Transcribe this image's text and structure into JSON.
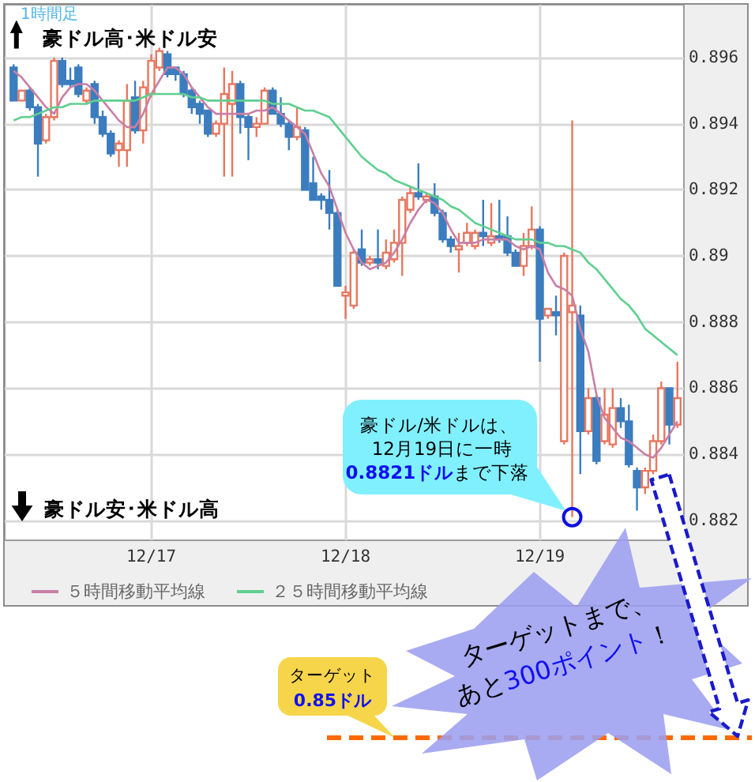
{
  "chart_data": {
    "type": "candlestick",
    "categories": [
      null,
      null,
      null,
      null,
      null,
      null,
      null,
      null,
      null,
      null,
      null,
      null,
      null,
      null,
      null,
      null,
      null,
      "12/17",
      null,
      null,
      null,
      null,
      null,
      null,
      null,
      null,
      null,
      null,
      null,
      null,
      null,
      null,
      null,
      null,
      null,
      null,
      null,
      null,
      null,
      null,
      null,
      "12/18",
      null,
      null,
      null,
      null,
      null,
      null,
      null,
      null,
      null,
      null,
      null,
      null,
      null,
      null,
      null,
      null,
      null,
      null,
      null,
      null,
      null,
      null,
      null,
      "12/19",
      null,
      null,
      null,
      null,
      null,
      null,
      null,
      null,
      null,
      null,
      null,
      null,
      null,
      null,
      null,
      null,
      null
    ],
    "ohlc": [
      [
        0.8957,
        0.8958,
        0.8947,
        0.8947
      ],
      [
        0.8947,
        0.895,
        0.8947,
        0.895
      ],
      [
        0.895,
        0.8951,
        0.8944,
        0.8945
      ],
      [
        0.8945,
        0.8946,
        0.8924,
        0.8934
      ],
      [
        0.8935,
        0.8943,
        0.8934,
        0.8942
      ],
      [
        0.8942,
        0.896,
        0.8941,
        0.8959
      ],
      [
        0.8959,
        0.896,
        0.8951,
        0.8952
      ],
      [
        0.8953,
        0.8957,
        0.8951,
        0.8952
      ],
      [
        0.8957,
        0.8958,
        0.8948,
        0.8949
      ],
      [
        0.8947,
        0.8951,
        0.8946,
        0.895
      ],
      [
        0.8952,
        0.8953,
        0.894,
        0.8942
      ],
      [
        0.8942,
        0.8944,
        0.8936,
        0.8937
      ],
      [
        0.8937,
        0.8938,
        0.893,
        0.8931
      ],
      [
        0.8932,
        0.8935,
        0.8927,
        0.8934
      ],
      [
        0.8932,
        0.8952,
        0.8927,
        0.8947
      ],
      [
        0.8948,
        0.8953,
        0.8937,
        0.8938
      ],
      [
        0.8938,
        0.8953,
        0.8934,
        0.8951
      ],
      [
        0.8949,
        0.8961,
        0.8948,
        0.8959
      ],
      [
        0.8957,
        0.8963,
        0.8956,
        0.8962
      ],
      [
        0.8961,
        0.8962,
        0.8954,
        0.8955
      ],
      [
        0.8957,
        0.8957,
        0.8953,
        0.8955
      ],
      [
        0.8955,
        0.8956,
        0.8948,
        0.8949
      ],
      [
        0.895,
        0.8951,
        0.8943,
        0.8945
      ],
      [
        0.8946,
        0.8947,
        0.894,
        0.8943
      ],
      [
        0.8944,
        0.8944,
        0.8936,
        0.8937
      ],
      [
        0.8937,
        0.8941,
        0.8936,
        0.894
      ],
      [
        0.894,
        0.8957,
        0.8924,
        0.8949
      ],
      [
        0.8946,
        0.8956,
        0.8924,
        0.8952
      ],
      [
        0.8952,
        0.8953,
        0.8937,
        0.8942
      ],
      [
        0.8942,
        0.8943,
        0.8929,
        0.8939
      ],
      [
        0.8939,
        0.8942,
        0.8936,
        0.894
      ],
      [
        0.894,
        0.8951,
        0.894,
        0.895
      ],
      [
        0.895,
        0.8951,
        0.8943,
        0.8943
      ],
      [
        0.8943,
        0.8948,
        0.8939,
        0.894
      ],
      [
        0.894,
        0.8941,
        0.8932,
        0.8936
      ],
      [
        0.8936,
        0.8945,
        0.8935,
        0.8939
      ],
      [
        0.8938,
        0.8939,
        0.892,
        0.892
      ],
      [
        0.8922,
        0.893,
        0.8917,
        0.8917
      ],
      [
        0.8918,
        0.8919,
        0.8914,
        0.8917
      ],
      [
        0.8917,
        0.8926,
        0.8908,
        0.8913
      ],
      [
        0.8913,
        0.8914,
        0.8891,
        0.8891
      ],
      [
        0.8888,
        0.8891,
        0.8881,
        0.8889
      ],
      [
        0.8885,
        0.8902,
        0.8884,
        0.8901
      ],
      [
        0.8902,
        0.8908,
        0.8897,
        0.8898
      ],
      [
        0.8898,
        0.89,
        0.8897,
        0.8899
      ],
      [
        0.8899,
        0.8908,
        0.8896,
        0.8898
      ],
      [
        0.8897,
        0.8905,
        0.8896,
        0.8901
      ],
      [
        0.8899,
        0.8908,
        0.8898,
        0.8904
      ],
      [
        0.8904,
        0.8918,
        0.8894,
        0.8917
      ],
      [
        0.8914,
        0.8921,
        0.8913,
        0.8919
      ],
      [
        0.8919,
        0.8928,
        0.8917,
        0.8918
      ],
      [
        0.8917,
        0.8919,
        0.8916,
        0.8918
      ],
      [
        0.8918,
        0.8922,
        0.8912,
        0.8913
      ],
      [
        0.8913,
        0.8914,
        0.8904,
        0.8905
      ],
      [
        0.8905,
        0.8906,
        0.8901,
        0.8903
      ],
      [
        0.8902,
        0.8907,
        0.8895,
        0.8903
      ],
      [
        0.8904,
        0.891,
        0.8903,
        0.8907
      ],
      [
        0.8903,
        0.8908,
        0.8902,
        0.8907
      ],
      [
        0.8907,
        0.8917,
        0.8903,
        0.8906
      ],
      [
        0.8904,
        0.8916,
        0.8903,
        0.8906
      ],
      [
        0.8906,
        0.8917,
        0.8904,
        0.8905
      ],
      [
        0.8906,
        0.8912,
        0.89,
        0.8901
      ],
      [
        0.8901,
        0.8902,
        0.8897,
        0.8897
      ],
      [
        0.8897,
        0.8907,
        0.8894,
        0.8903
      ],
      [
        0.8903,
        0.8915,
        0.8902,
        0.8908
      ],
      [
        0.8908,
        0.8909,
        0.8868,
        0.8881
      ],
      [
        0.8882,
        0.8884,
        0.8881,
        0.8884
      ],
      [
        0.8883,
        0.8888,
        0.8876,
        0.8882
      ],
      [
        0.8844,
        0.8901,
        0.8843,
        0.89
      ],
      [
        0.8883,
        0.8941,
        0.8821,
        0.8885
      ],
      [
        0.8882,
        0.8885,
        0.8834,
        0.8847
      ],
      [
        0.8847,
        0.886,
        0.8846,
        0.8857
      ],
      [
        0.8857,
        0.8858,
        0.8837,
        0.8838
      ],
      [
        0.8844,
        0.886,
        0.8843,
        0.8852
      ],
      [
        0.8843,
        0.886,
        0.8842,
        0.8854
      ],
      [
        0.8854,
        0.8857,
        0.8848,
        0.885
      ],
      [
        0.885,
        0.8855,
        0.8836,
        0.8837
      ],
      [
        0.8835,
        0.8836,
        0.8823,
        0.883
      ],
      [
        0.883,
        0.8836,
        0.8828,
        0.8835
      ],
      [
        0.8835,
        0.8846,
        0.8834,
        0.8844
      ],
      [
        0.8844,
        0.8862,
        0.8843,
        0.886
      ],
      [
        0.886,
        0.886,
        0.8843,
        0.8849
      ],
      [
        0.8849,
        0.8868,
        0.8848,
        0.8857
      ]
    ],
    "colors": [
      "#3b7dbf",
      "#e8775f",
      "#3b7dbf",
      "#3b7dbf",
      "#e8775f",
      "#e8775f",
      "#3b7dbf",
      "#3b7dbf",
      "#3b7dbf",
      "#e8775f",
      "#3b7dbf",
      "#3b7dbf",
      "#3b7dbf",
      "#e8775f",
      "#e8775f",
      "#3b7dbf",
      "#e8775f",
      "#e8775f",
      "#e8775f",
      "#3b7dbf",
      "#3b7dbf",
      "#3b7dbf",
      "#3b7dbf",
      "#3b7dbf",
      "#3b7dbf",
      "#e8775f",
      "#e8775f",
      "#e8775f",
      "#3b7dbf",
      "#3b7dbf",
      "#e8775f",
      "#e8775f",
      "#3b7dbf",
      "#3b7dbf",
      "#3b7dbf",
      "#e8775f",
      "#3b7dbf",
      "#3b7dbf",
      "#3b7dbf",
      "#3b7dbf",
      "#3b7dbf",
      "#e8775f",
      "#e8775f",
      "#3b7dbf",
      "#e8775f",
      "#3b7dbf",
      "#e8775f",
      "#e8775f",
      "#e8775f",
      "#e8775f",
      "#3b7dbf",
      "#e8775f",
      "#3b7dbf",
      "#3b7dbf",
      "#3b7dbf",
      "#e8775f",
      "#e8775f",
      "#e8775f",
      "#3b7dbf",
      "#e8775f",
      "#3b7dbf",
      "#3b7dbf",
      "#3b7dbf",
      "#e8775f",
      "#e8775f",
      "#3b7dbf",
      "#e8775f",
      "#3b7dbf",
      "#e8775f",
      "#e8775f",
      "#3b7dbf",
      "#e8775f",
      "#3b7dbf",
      "#e8775f",
      "#e8775f",
      "#3b7dbf",
      "#3b7dbf",
      "#3b7dbf",
      "#e8775f",
      "#e8775f",
      "#e8775f",
      "#3b7dbf",
      "#e8775f"
    ],
    "series": [
      {
        "name": "５時間移動平均線",
        "type": "line",
        "color": "#c97fa6",
        "values": [
          0.8956,
          0.8954,
          0.8951,
          0.8948,
          0.8945,
          0.8943,
          0.8948,
          0.8951,
          0.8952,
          0.8952,
          0.895,
          0.8947,
          0.8944,
          0.8941,
          0.8939,
          0.8939,
          0.8943,
          0.8949,
          0.8953,
          0.8957,
          0.8957,
          0.8955,
          0.8951,
          0.8948,
          0.8945,
          0.8943,
          0.8943,
          0.8943,
          0.8943,
          0.8943,
          0.8944,
          0.8944,
          0.8945,
          0.8943,
          0.8941,
          0.8939,
          0.8937,
          0.8931,
          0.8925,
          0.8921,
          0.8914,
          0.8907,
          0.8902,
          0.8898,
          0.8896,
          0.8897,
          0.8898,
          0.8901,
          0.8905,
          0.891,
          0.8914,
          0.8917,
          0.8916,
          0.8913,
          0.8908,
          0.8904,
          0.8904,
          0.8904,
          0.8905,
          0.8905,
          0.8905,
          0.8905,
          0.8903,
          0.8902,
          0.8903,
          0.8902,
          0.8895,
          0.8891,
          0.889,
          0.8888,
          0.8878,
          0.8871,
          0.8858,
          0.8851,
          0.8848,
          0.8845,
          0.8844,
          0.8842,
          0.884,
          0.8839,
          0.8842,
          0.8846,
          0.885
        ]
      },
      {
        "name": "２５時間移動平均線",
        "type": "line",
        "color": "#5fcf8f",
        "values": [
          0.8941,
          0.8942,
          0.8942,
          0.8943,
          0.8944,
          0.8945,
          0.8945,
          0.8946,
          0.8946,
          0.8946,
          0.8947,
          0.8947,
          0.8947,
          0.8947,
          0.8947,
          0.8947,
          0.8948,
          0.8949,
          0.8949,
          0.8949,
          0.8949,
          0.8949,
          0.8948,
          0.8948,
          0.8947,
          0.8947,
          0.8947,
          0.8947,
          0.8947,
          0.8947,
          0.8947,
          0.8947,
          0.8946,
          0.8946,
          0.8946,
          0.8945,
          0.8944,
          0.8944,
          0.8943,
          0.8942,
          0.8939,
          0.8936,
          0.8933,
          0.893,
          0.8928,
          0.8926,
          0.8925,
          0.8923,
          0.8922,
          0.8921,
          0.892,
          0.8919,
          0.8918,
          0.8917,
          0.8915,
          0.8914,
          0.8912,
          0.891,
          0.8909,
          0.8908,
          0.8907,
          0.8906,
          0.8905,
          0.8905,
          0.8905,
          0.8904,
          0.8904,
          0.8903,
          0.8903,
          0.8902,
          0.8901,
          0.8898,
          0.8896,
          0.8893,
          0.889,
          0.8887,
          0.8885,
          0.8882,
          0.8878,
          0.8876,
          0.8874,
          0.8872,
          0.887
        ]
      }
    ],
    "ylim": [
      0.8814,
      0.8976
    ],
    "yticks": [
      0.882,
      0.884,
      0.886,
      0.888,
      0.89,
      0.892,
      0.894,
      0.896
    ],
    "grid": true,
    "legend": "bottom",
    "marker": "none",
    "annotations": [
      "1時間足",
      "豪ドル高･米ドル安",
      "豪ドル安･米ドル高",
      "豪ドル/米ドルは、",
      "12月19日に一時",
      "0.8821ドル",
      "まで下落",
      "ターゲットまで、",
      "あと",
      "300ポイント",
      "！",
      "ターゲット",
      "0.85ドル"
    ]
  }
}
